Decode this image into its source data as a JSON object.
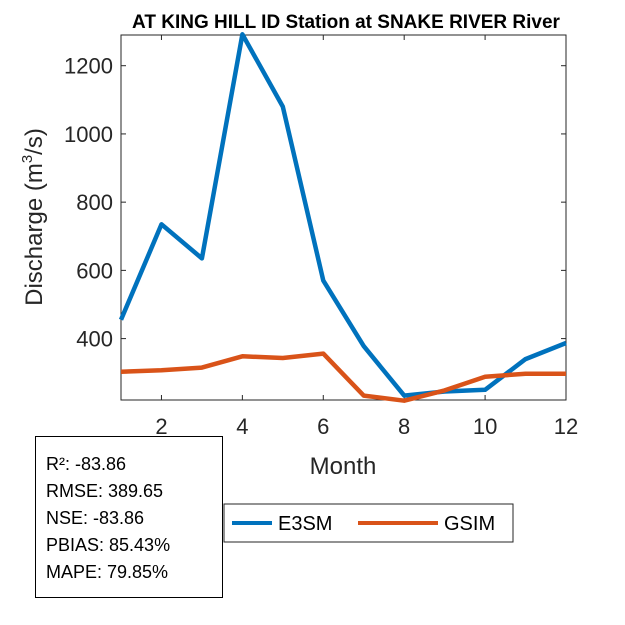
{
  "chart_data": {
    "type": "line",
    "title": "AT KING HILL ID  Station at  SNAKE RIVER  River",
    "xlabel": "Month",
    "ylabel": "Discharge (m",
    "ylabel_sup": "3",
    "ylabel_end": "/s)",
    "xlim": [
      1,
      12
    ],
    "ylim": [
      220,
      1290
    ],
    "xticks": [
      2,
      4,
      6,
      8,
      10,
      12
    ],
    "yticks": [
      400,
      600,
      800,
      1000,
      1200
    ],
    "x": [
      1,
      2,
      3,
      4,
      5,
      6,
      7,
      8,
      9,
      10,
      11,
      12
    ],
    "series": [
      {
        "name": "E3SM",
        "color": "#0072BD",
        "values": [
          455,
          735,
          635,
          1292,
          1080,
          570,
          378,
          233,
          245,
          250,
          340,
          387
        ]
      },
      {
        "name": "GSIM",
        "color": "#D95319",
        "values": [
          303,
          307,
          315,
          348,
          343,
          356,
          233,
          218,
          248,
          288,
          297,
          297
        ]
      }
    ]
  },
  "stats": [
    "R²: -83.86",
    "RMSE: 389.65",
    "NSE: -83.86",
    "PBIAS: 85.43%",
    "MAPE: 79.85%"
  ]
}
